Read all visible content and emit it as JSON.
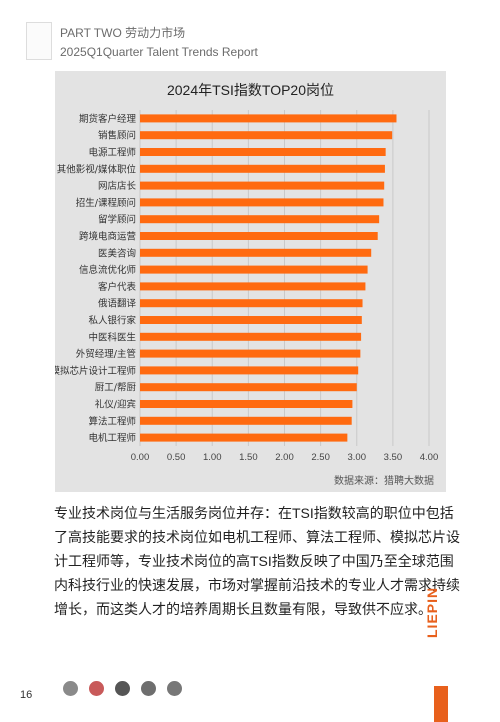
{
  "header": {
    "line1": "PART TWO 劳动力市场",
    "line2": "2025Q1Quarter Talent Trends Report"
  },
  "chart_data": {
    "type": "bar",
    "orientation": "horizontal",
    "title": "2024年TSI指数TOP20岗位",
    "categories": [
      "期货客户经理",
      "销售顾问",
      "电源工程师",
      "其他影视/媒体职位",
      "网店店长",
      "招生/课程顾问",
      "留学顾问",
      "跨境电商运营",
      "医美咨询",
      "信息流优化师",
      "客户代表",
      "俄语翻译",
      "私人银行家",
      "中医科医生",
      "外贸经理/主管",
      "模拟芯片设计工程师",
      "厨工/帮厨",
      "礼仪/迎宾",
      "算法工程师",
      "电机工程师"
    ],
    "values": [
      3.55,
      3.49,
      3.4,
      3.39,
      3.38,
      3.37,
      3.31,
      3.29,
      3.2,
      3.15,
      3.12,
      3.08,
      3.07,
      3.06,
      3.05,
      3.02,
      3.0,
      2.94,
      2.93,
      2.87
    ],
    "xlim": [
      0,
      4.0
    ],
    "ticks": [
      "0.00",
      "0.50",
      "1.00",
      "1.50",
      "2.00",
      "2.50",
      "3.00",
      "3.50",
      "4.00"
    ],
    "bar_color": "#ff6a10",
    "grid": true
  },
  "source": "数据来源：猎聘大数据",
  "body_text": "专业技术岗位与生活服务岗位并存：在TSI指数较高的职位中包括了高技能要求的技术岗位如电机工程师、算法工程师、模拟芯片设计工程师等，专业技术岗位的高TSI指数反映了中国乃至全球范围内科技行业的快速发展，市场对掌握前沿技术的专业人才需求持续增长，而这类人才的培养周期长且数量有限，导致供不应求。",
  "footer": {
    "page_number": "16",
    "brand": "LIEPIN",
    "brand_color": "#e8601c"
  }
}
